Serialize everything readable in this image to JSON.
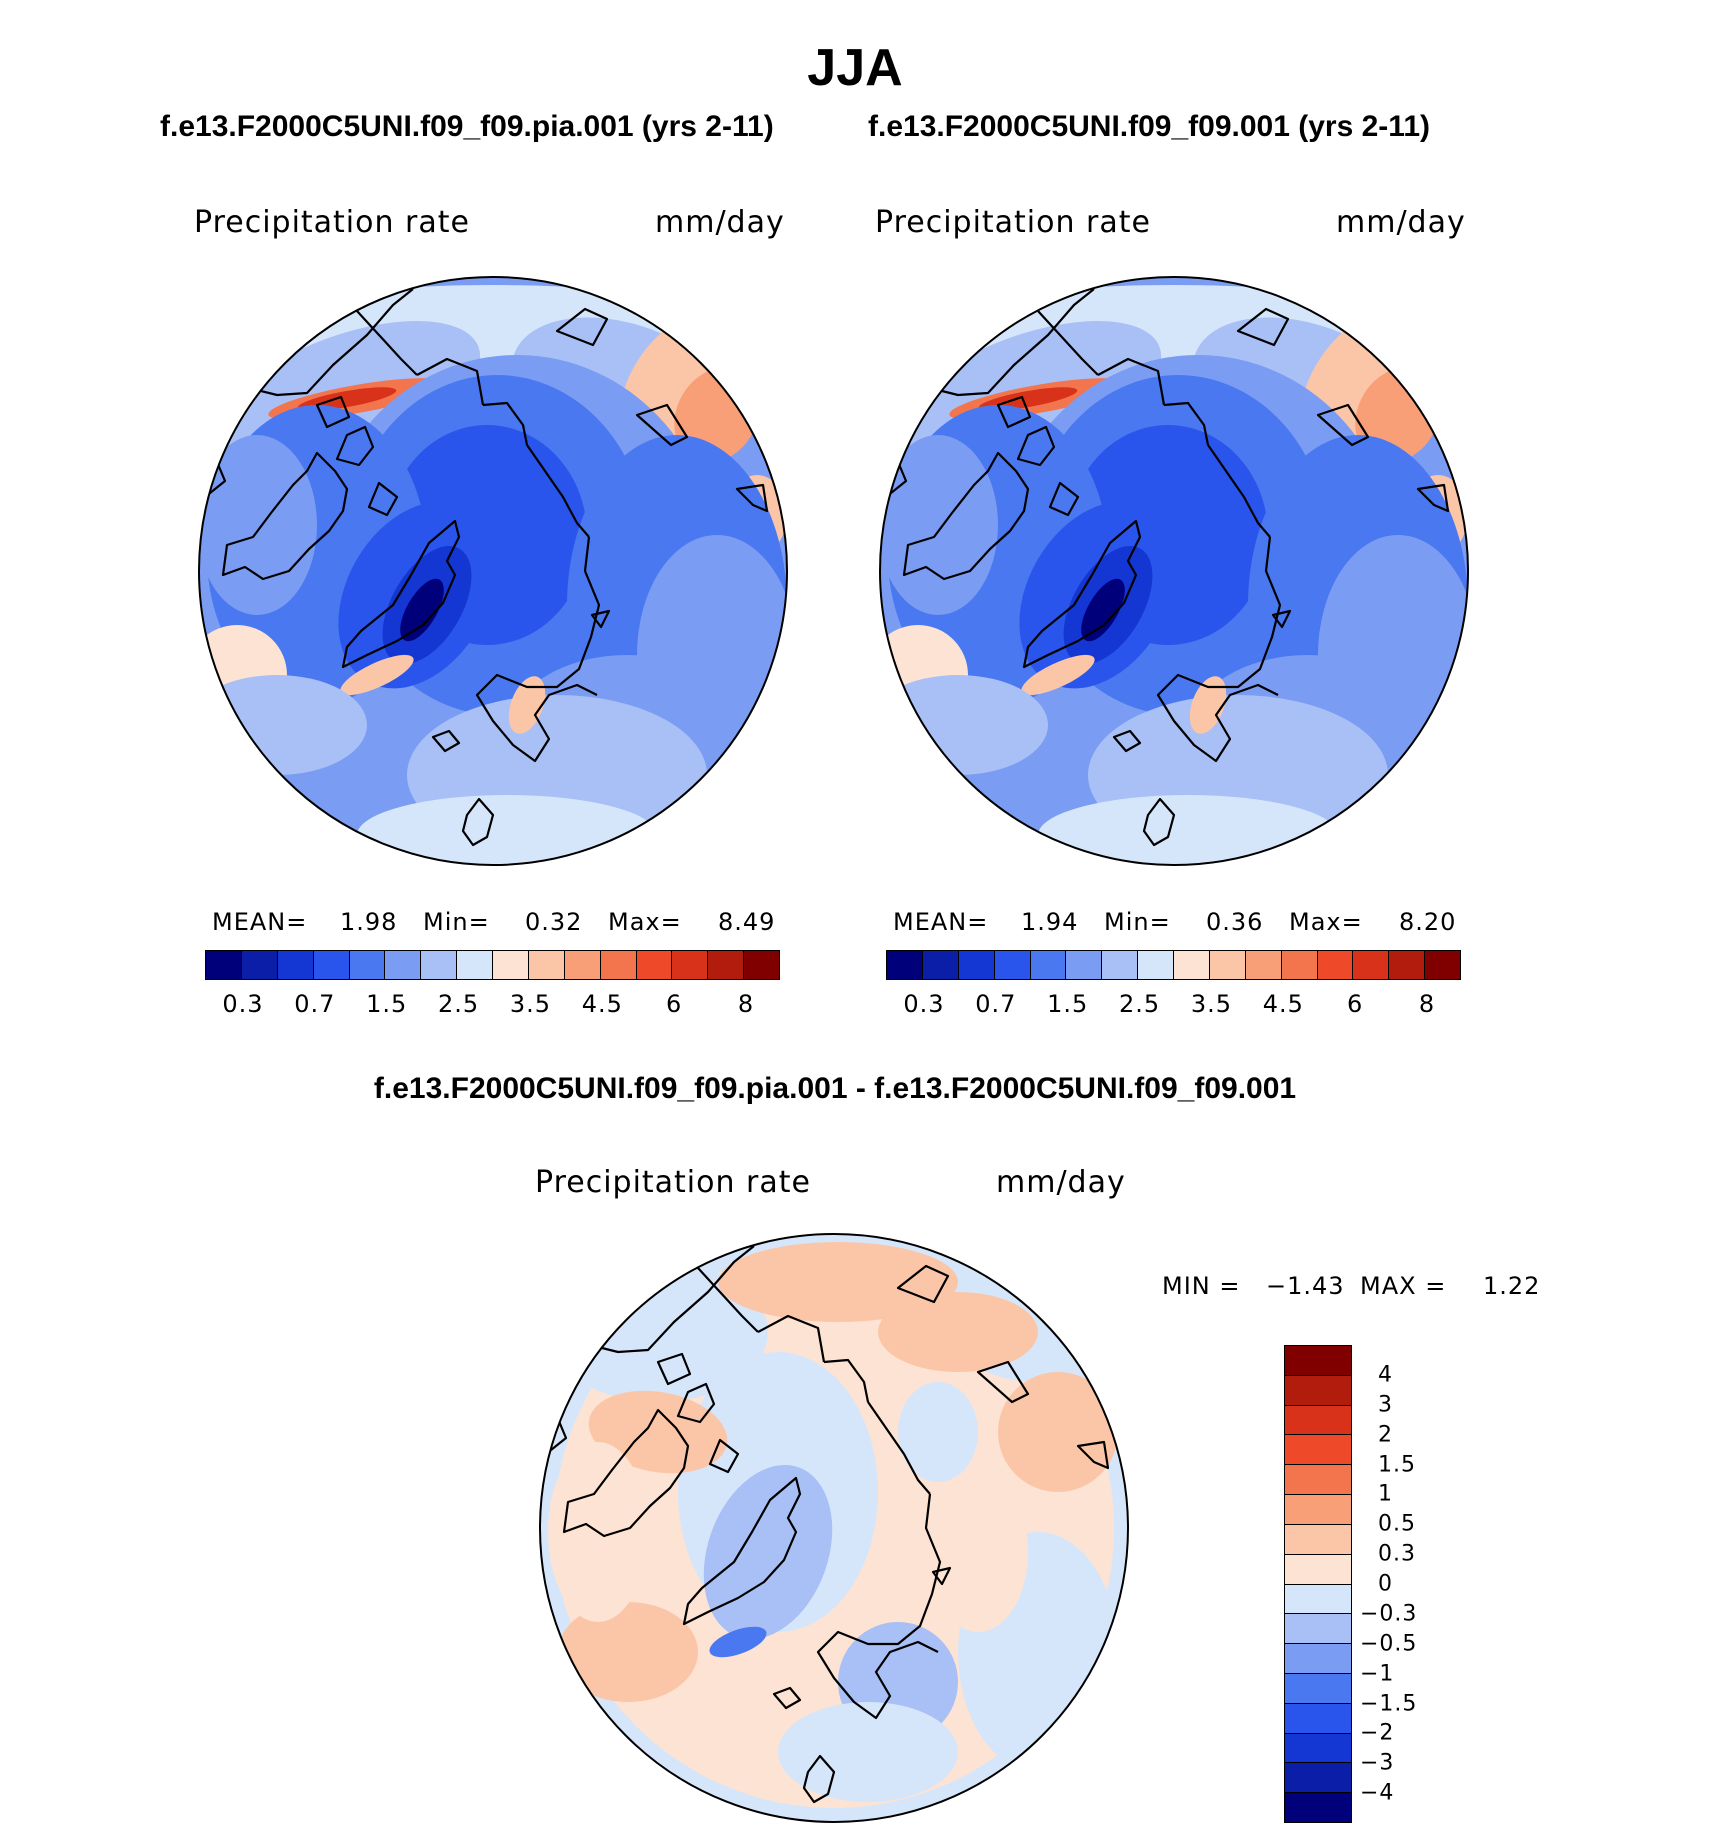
{
  "season": "JJA",
  "panels": [
    {
      "title": "f.e13.F2000C5UNI.f09_f09.pia.001 (yrs 2-11)",
      "variable": "Precipitation  rate",
      "units": "mm/day",
      "stats": {
        "mean_label": "MEAN=",
        "mean": "1.98",
        "min_label": "Min=",
        "min": "0.32",
        "max_label": "Max=",
        "max": "8.49"
      }
    },
    {
      "title": "f.e13.F2000C5UNI.f09_f09.001 (yrs 2-11)",
      "variable": "Precipitation  rate",
      "units": "mm/day",
      "stats": {
        "mean_label": "MEAN=",
        "mean": "1.94",
        "min_label": "Min=",
        "min": "0.36",
        "max_label": "Max=",
        "max": "8.20"
      }
    }
  ],
  "diff": {
    "title": "f.e13.F2000C5UNI.f09_f09.pia.001 - f.e13.F2000C5UNI.f09_f09.001",
    "variable": "Precipitation  rate",
    "units": "mm/day",
    "min_label": "MIN =",
    "min": "−1.43",
    "max_label": "MAX =",
    "max": "1.22"
  },
  "chart_data": [
    {
      "type": "heatmap",
      "projection": "north polar stereographic",
      "title": "f.e13.F2000C5UNI.f09_f09.pia.001 (yrs 2-11)",
      "variable": "Precipitation rate",
      "units": "mm/day",
      "mean": 1.98,
      "min": 0.32,
      "max": 8.49,
      "colorbar_ticks": [
        "0.3",
        "0.7",
        "1.5",
        "2.5",
        "3.5",
        "4.5",
        "6",
        "8"
      ],
      "levels": [
        0.2,
        0.3,
        0.5,
        0.7,
        1,
        1.5,
        2,
        2.5,
        3,
        3.5,
        4,
        4.5,
        5,
        6,
        7,
        8
      ]
    },
    {
      "type": "heatmap",
      "projection": "north polar stereographic",
      "title": "f.e13.F2000C5UNI.f09_f09.001 (yrs 2-11)",
      "variable": "Precipitation rate",
      "units": "mm/day",
      "mean": 1.94,
      "min": 0.36,
      "max": 8.2,
      "colorbar_ticks": [
        "0.3",
        "0.7",
        "1.5",
        "2.5",
        "3.5",
        "4.5",
        "6",
        "8"
      ],
      "levels": [
        0.2,
        0.3,
        0.5,
        0.7,
        1,
        1.5,
        2,
        2.5,
        3,
        3.5,
        4,
        4.5,
        5,
        6,
        7,
        8
      ]
    },
    {
      "type": "heatmap",
      "projection": "north polar stereographic",
      "title": "f.e13.F2000C5UNI.f09_f09.pia.001 - f.e13.F2000C5UNI.f09_f09.001",
      "variable": "Precipitation rate",
      "units": "mm/day",
      "min": -1.43,
      "max": 1.22,
      "colorbar_ticks": [
        "4",
        "3",
        "2",
        "1.5",
        "1",
        "0.5",
        "0.3",
        "0",
        "−0.3",
        "−0.5",
        "−1",
        "−1.5",
        "−2",
        "−3",
        "−4"
      ]
    }
  ],
  "palette": {
    "precip": [
      "#00007a",
      "#0a1ea8",
      "#1436d2",
      "#2a55ec",
      "#4a78f0",
      "#7a9cf2",
      "#a8c0f6",
      "#d6e6fa",
      "#fde3d3",
      "#fbc6a8",
      "#f89f78",
      "#f3754d",
      "#ee4a2a",
      "#d8321a",
      "#b11c0c",
      "#800000"
    ],
    "diff": [
      "#800000",
      "#b11c0c",
      "#d8321a",
      "#ee4a2a",
      "#f3754d",
      "#f89f78",
      "#fbc6a8",
      "#fde3d3",
      "#d6e6fa",
      "#a8c0f6",
      "#7a9cf2",
      "#4a78f0",
      "#2a55ec",
      "#1436d2",
      "#0a1ea8",
      "#00007a"
    ]
  }
}
